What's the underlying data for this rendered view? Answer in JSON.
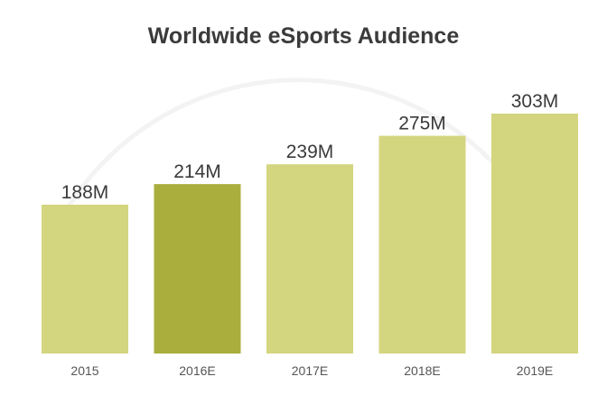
{
  "chart_data": {
    "type": "bar",
    "title": "Worldwide eSports Audience",
    "categories": [
      "2015",
      "2016E",
      "2017E",
      "2018E",
      "2019E"
    ],
    "values": [
      188,
      214,
      239,
      275,
      303
    ],
    "value_labels": [
      "188M",
      "214M",
      "239M",
      "275M",
      "303M"
    ],
    "highlight_index": 1,
    "ylim": [
      0,
      303
    ],
    "grid": false,
    "legend": "none",
    "colors": {
      "bar": "#d4d57f",
      "highlight": "#a9ae3c",
      "label": "#3a3a3a",
      "tick": "#555555",
      "background": "#ffffff",
      "arc": "#f3f3f3"
    }
  }
}
